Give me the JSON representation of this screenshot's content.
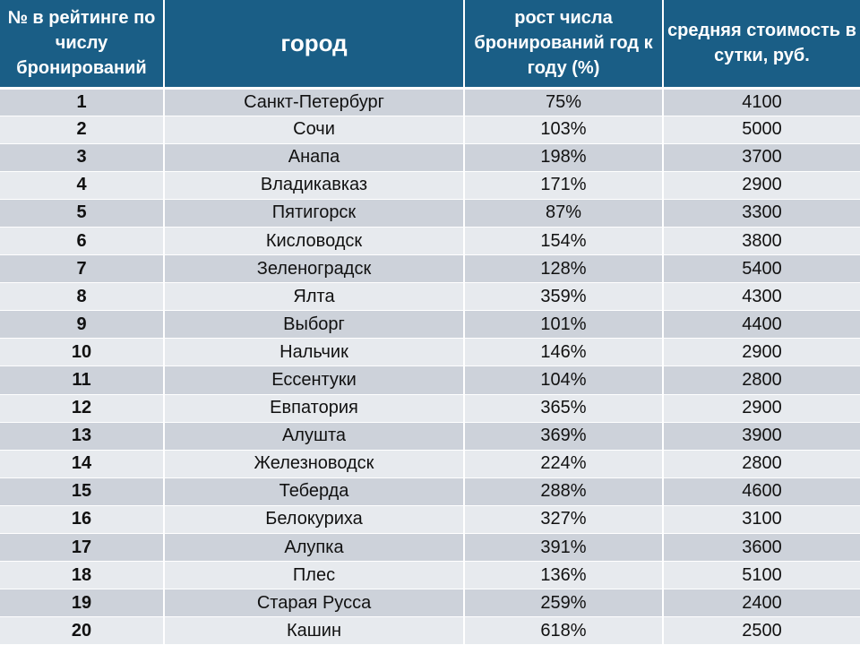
{
  "table": {
    "headers": [
      "№ в рейтинге по числу бронирований",
      "город",
      "рост числа бронирований год к году (%)",
      "средняя стоимость в сутки, руб."
    ],
    "rows": [
      [
        "1",
        "Санкт-Петербург",
        "75%",
        "4100"
      ],
      [
        "2",
        "Сочи",
        "103%",
        "5000"
      ],
      [
        "3",
        "Анапа",
        "198%",
        "3700"
      ],
      [
        "4",
        "Владикавказ",
        "171%",
        "2900"
      ],
      [
        "5",
        "Пятигорск",
        "87%",
        "3300"
      ],
      [
        "6",
        "Кисловодск",
        "154%",
        "3800"
      ],
      [
        "7",
        "Зеленоградск",
        "128%",
        "5400"
      ],
      [
        "8",
        "Ялта",
        "359%",
        "4300"
      ],
      [
        "9",
        "Выборг",
        "101%",
        "4400"
      ],
      [
        "10",
        "Нальчик",
        "146%",
        "2900"
      ],
      [
        "11",
        "Ессентуки",
        "104%",
        "2800"
      ],
      [
        "12",
        "Евпатория",
        "365%",
        "2900"
      ],
      [
        "13",
        "Алушта",
        "369%",
        "3900"
      ],
      [
        "14",
        "Железноводск",
        "224%",
        "2800"
      ],
      [
        "15",
        "Теберда",
        "288%",
        "4600"
      ],
      [
        "16",
        "Белокуриха",
        "327%",
        "3100"
      ],
      [
        "17",
        "Алупка",
        "391%",
        "3600"
      ],
      [
        "18",
        "Плес",
        "136%",
        "5100"
      ],
      [
        "19",
        "Старая Русса",
        "259%",
        "2400"
      ],
      [
        "20",
        "Кашин",
        "618%",
        "2500"
      ]
    ]
  }
}
